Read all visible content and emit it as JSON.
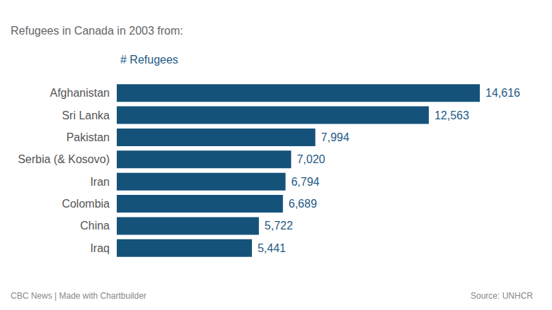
{
  "chart_data": {
    "type": "bar",
    "orientation": "horizontal",
    "title": "Refugees in Canada in 2003 from:",
    "xlabel": "# Refugees",
    "annotations": [
      "CBC News | Made with Chartbuilder",
      "Source: UNHCR"
    ],
    "categories": [
      "Afghanistan",
      "Sri Lanka",
      "Pakistan",
      "Serbia (& Kosovo)",
      "Iran",
      "Colombia",
      "China",
      "Iraq"
    ],
    "values": [
      14616,
      12563,
      7994,
      7020,
      6794,
      6689,
      5722,
      5441
    ],
    "value_labels": [
      "14,616",
      "12,563",
      "7,994",
      "7,020",
      "6,794",
      "6,689",
      "5,722",
      "5,441"
    ],
    "color": "#15527a",
    "xlim": [
      0,
      14616
    ],
    "data_labels": true,
    "tick_labels": "y",
    "grid": false
  }
}
